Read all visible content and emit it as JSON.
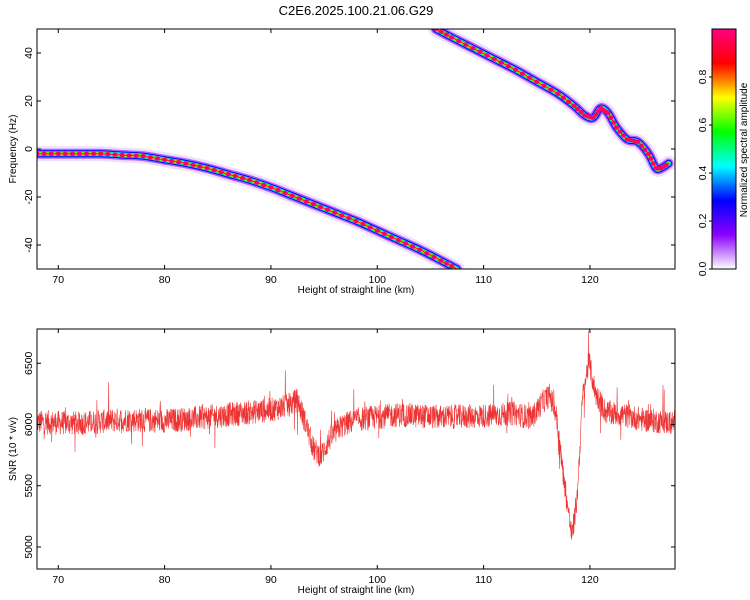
{
  "title": "C2E6.2025.100.21.06.G29",
  "chart_data": [
    {
      "type": "heatmap",
      "name": "spectrogram",
      "xlabel": "Height of straight line (km)",
      "ylabel": "Frequency (Hz)",
      "xlim": [
        68,
        128
      ],
      "ylim": [
        -50,
        50
      ],
      "xticks": [
        70,
        80,
        90,
        100,
        110,
        120
      ],
      "yticks": [
        -40,
        -20,
        0,
        20,
        40
      ],
      "grid": false,
      "colorbar": {
        "label": "Normalized spectral amplitude",
        "range": [
          0,
          1
        ],
        "ticks": [
          0.0,
          0.2,
          0.4,
          0.6,
          0.8
        ],
        "tick_labels": [
          "0.0",
          "0.2",
          "0.4",
          "0.6",
          "0.8"
        ],
        "colormap": [
          "#ffffff",
          "#8a00ff",
          "#0000ff",
          "#00ffff",
          "#00ff00",
          "#ffff00",
          "#ff0000",
          "#ff0080"
        ]
      },
      "traces": [
        {
          "x": [
            68,
            70,
            72,
            74,
            76,
            78,
            80,
            82,
            84,
            86,
            88,
            90,
            92,
            94,
            96,
            98,
            100,
            102,
            104,
            106,
            107.5
          ],
          "y": [
            -2,
            -2,
            -2,
            -2,
            -2.5,
            -3,
            -4.5,
            -6,
            -8,
            -10.5,
            -13,
            -16,
            -19.5,
            -23,
            -26.5,
            -30,
            -34,
            -38,
            -42,
            -46.5,
            -50
          ]
        },
        {
          "x": [
            105.5,
            107,
            109,
            111,
            113,
            115,
            117,
            118.5,
            119.5,
            120.3,
            121,
            121.7,
            122.5,
            123.5,
            124.5,
            125.5,
            126.2,
            126.7,
            127.4
          ],
          "y": [
            50,
            46.5,
            42,
            37.5,
            33,
            28,
            23,
            18,
            14,
            13,
            17,
            15,
            9,
            4,
            3,
            -2,
            -8,
            -8,
            -6
          ]
        }
      ]
    },
    {
      "type": "line",
      "name": "snr",
      "xlabel": "Height of straight line (km)",
      "ylabel": "SNR (10 * v/v)",
      "xlim": [
        68,
        128
      ],
      "ylim": [
        4820,
        6780
      ],
      "xticks": [
        70,
        80,
        90,
        100,
        110,
        120
      ],
      "yticks": [
        5000,
        5500,
        6000,
        6500
      ],
      "grid": false,
      "color": "#ee3333",
      "noise_amplitude": 100,
      "baseline": [
        [
          68,
          6020
        ],
        [
          72,
          6010
        ],
        [
          76,
          6040
        ],
        [
          80,
          6030
        ],
        [
          84,
          6060
        ],
        [
          88,
          6100
        ],
        [
          90,
          6120
        ],
        [
          91.5,
          6150
        ],
        [
          92.5,
          6200
        ],
        [
          93.3,
          6000
        ],
        [
          94,
          5800
        ],
        [
          94.7,
          5740
        ],
        [
          95.5,
          5880
        ],
        [
          96.5,
          5980
        ],
        [
          98,
          6040
        ],
        [
          102,
          6080
        ],
        [
          106,
          6060
        ],
        [
          110,
          6070
        ],
        [
          113,
          6090
        ],
        [
          114.5,
          6050
        ],
        [
          115.5,
          6180
        ],
        [
          116.2,
          6240
        ],
        [
          116.8,
          6100
        ],
        [
          117.3,
          5720
        ],
        [
          117.8,
          5400
        ],
        [
          118.3,
          5080
        ],
        [
          118.8,
          5400
        ],
        [
          119.3,
          6220
        ],
        [
          119.9,
          6520
        ],
        [
          120.5,
          6260
        ],
        [
          121.5,
          6100
        ],
        [
          123,
          6080
        ],
        [
          125,
          6040
        ],
        [
          128,
          6010
        ]
      ]
    }
  ]
}
